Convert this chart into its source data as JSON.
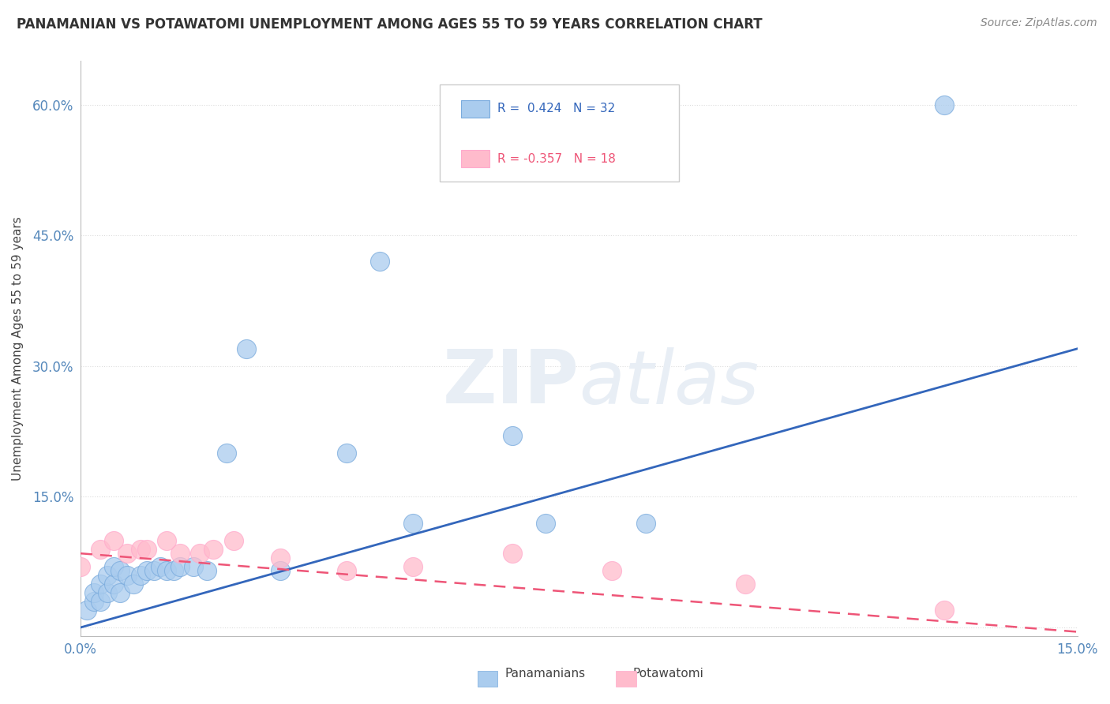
{
  "title": "PANAMANIAN VS POTAWATOMI UNEMPLOYMENT AMONG AGES 55 TO 59 YEARS CORRELATION CHART",
  "source": "Source: ZipAtlas.com",
  "xlabel": "",
  "ylabel": "Unemployment Among Ages 55 to 59 years",
  "xlim": [
    0.0,
    0.15
  ],
  "ylim": [
    -0.01,
    0.65
  ],
  "xticks": [
    0.0,
    0.025,
    0.05,
    0.075,
    0.1,
    0.125,
    0.15
  ],
  "xticklabels": [
    "0.0%",
    "",
    "",
    "",
    "",
    "",
    "15.0%"
  ],
  "yticks": [
    0.0,
    0.15,
    0.3,
    0.45,
    0.6
  ],
  "yticklabels": [
    "",
    "15.0%",
    "30.0%",
    "45.0%",
    "60.0%"
  ],
  "panamanian_x": [
    0.001,
    0.002,
    0.002,
    0.003,
    0.003,
    0.004,
    0.004,
    0.005,
    0.005,
    0.006,
    0.006,
    0.007,
    0.008,
    0.009,
    0.01,
    0.011,
    0.012,
    0.013,
    0.014,
    0.015,
    0.017,
    0.019,
    0.022,
    0.025,
    0.03,
    0.04,
    0.045,
    0.05,
    0.065,
    0.07,
    0.085,
    0.13
  ],
  "panamanian_y": [
    0.02,
    0.03,
    0.04,
    0.03,
    0.05,
    0.04,
    0.06,
    0.05,
    0.07,
    0.04,
    0.065,
    0.06,
    0.05,
    0.06,
    0.065,
    0.065,
    0.07,
    0.065,
    0.065,
    0.07,
    0.07,
    0.065,
    0.2,
    0.32,
    0.065,
    0.2,
    0.42,
    0.12,
    0.22,
    0.12,
    0.12,
    0.6
  ],
  "potawatomi_x": [
    0.0,
    0.003,
    0.005,
    0.007,
    0.009,
    0.01,
    0.013,
    0.015,
    0.018,
    0.02,
    0.023,
    0.03,
    0.04,
    0.05,
    0.065,
    0.08,
    0.1,
    0.13
  ],
  "potawatomi_y": [
    0.07,
    0.09,
    0.1,
    0.085,
    0.09,
    0.09,
    0.1,
    0.085,
    0.085,
    0.09,
    0.1,
    0.08,
    0.065,
    0.07,
    0.085,
    0.065,
    0.05,
    0.02
  ],
  "pan_R": 0.424,
  "pan_N": 32,
  "pot_R": -0.357,
  "pot_N": 18,
  "blue_color": "#AACCEE",
  "blue_edge_color": "#7AABDD",
  "pink_color": "#FFBBCC",
  "pink_edge_color": "#FFAACC",
  "blue_line_color": "#3366BB",
  "pink_line_color": "#EE5577",
  "watermark_color": "#E8EEF5",
  "background_color": "#FFFFFF",
  "legend_box_color": "#FFFFFF",
  "legend_border_color": "#CCCCCC",
  "tick_color": "#5588BB",
  "grid_color": "#DDDDDD",
  "title_color": "#333333",
  "source_color": "#888888",
  "ylabel_color": "#444444"
}
